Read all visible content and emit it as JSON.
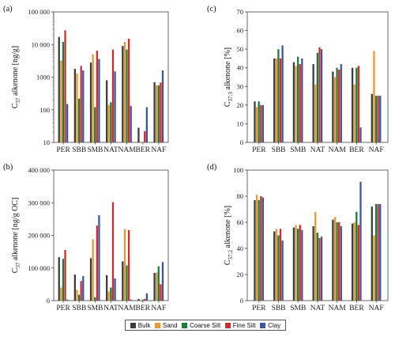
{
  "legend": {
    "items": [
      {
        "label": "Bulk",
        "color": "#3d3d3d"
      },
      {
        "label": "Sand",
        "color": "#e39a38"
      },
      {
        "label": "Coarse Silt",
        "color": "#1f7a3c"
      },
      {
        "label": "Fine Silt",
        "color": "#d62a2a"
      },
      {
        "label": "Clay",
        "color": "#3b56a6"
      }
    ]
  },
  "chart_data": [
    {
      "panel": "(a)",
      "type": "bar",
      "scale": "log",
      "ylabel": "C37 alkenone [ng/g]",
      "ylim": [
        10,
        100000
      ],
      "yticks": [
        "10",
        "100",
        "1000",
        "10 000",
        "100 000"
      ],
      "ytick_values": [
        10,
        100,
        1000,
        10000,
        100000
      ],
      "categories": [
        "PER",
        "SBB",
        "SMB",
        "NAT",
        "NAM",
        "BER",
        "NAF"
      ],
      "series": [
        {
          "name": "Bulk",
          "values": [
            17000,
            1800,
            2800,
            800,
            9000,
            28,
            700
          ]
        },
        {
          "name": "Sand",
          "values": [
            3200,
            1300,
            5000,
            140,
            12000,
            null,
            560
          ]
        },
        {
          "name": "Coarse Silt",
          "values": [
            12000,
            220,
            120,
            170,
            7000,
            10,
            560
          ]
        },
        {
          "name": "Fine Silt",
          "values": [
            27000,
            2200,
            6500,
            7000,
            15000,
            22,
            680
          ]
        },
        {
          "name": "Clay",
          "values": [
            150,
            1600,
            3600,
            1500,
            130,
            120,
            1600
          ]
        }
      ]
    },
    {
      "panel": "(b)",
      "type": "bar",
      "scale": "linear",
      "ylabel": "C37 alkenone [ng/g OC]",
      "ylim": [
        0,
        400000
      ],
      "yticks": [
        "0",
        "100 000",
        "200 000",
        "300 000",
        "400 000"
      ],
      "ytick_values": [
        0,
        100000,
        200000,
        300000,
        400000
      ],
      "categories": [
        "PER",
        "SBB",
        "SMB",
        "NAT",
        "NAM",
        "BER",
        "NAF"
      ],
      "series": [
        {
          "name": "Bulk",
          "values": [
            133000,
            80000,
            130000,
            78000,
            120000,
            5000,
            85000
          ]
        },
        {
          "name": "Sand",
          "values": [
            40000,
            33000,
            188000,
            28000,
            219000,
            null,
            86000
          ]
        },
        {
          "name": "Coarse Silt",
          "values": [
            128000,
            18000,
            10000,
            40000,
            108000,
            3000,
            105000
          ]
        },
        {
          "name": "Fine Silt",
          "values": [
            155000,
            60000,
            230000,
            302000,
            216000,
            5000,
            50000
          ]
        },
        {
          "name": "Clay",
          "values": [
            3000,
            75000,
            262000,
            68000,
            3000,
            22000,
            118000
          ]
        }
      ]
    },
    {
      "panel": "(c)",
      "type": "bar",
      "scale": "linear",
      "ylabel": "C37:3 alkenone [%]",
      "ylim": [
        0,
        70
      ],
      "yticks": [
        "0",
        "10",
        "20",
        "30",
        "40",
        "50",
        "60",
        "70"
      ],
      "ytick_values": [
        0,
        10,
        20,
        30,
        40,
        50,
        60,
        70
      ],
      "categories": [
        "PER",
        "SBB",
        "SMB",
        "NAT",
        "NAM",
        "BER",
        "NAF"
      ],
      "series": [
        {
          "name": "Bulk",
          "values": [
            22,
            45,
            43,
            42,
            38,
            40,
            26
          ]
        },
        {
          "name": "Sand",
          "values": [
            19,
            45,
            41,
            31,
            35,
            31,
            49
          ]
        },
        {
          "name": "Coarse Silt",
          "values": [
            22,
            50,
            46,
            48,
            40,
            40,
            25
          ]
        },
        {
          "name": "Fine Silt",
          "values": [
            20,
            45,
            42,
            51,
            39,
            41,
            25
          ]
        },
        {
          "name": "Clay",
          "values": [
            20,
            52,
            45,
            50,
            42,
            8,
            25
          ]
        }
      ]
    },
    {
      "panel": "(d)",
      "type": "bar",
      "scale": "linear",
      "ylabel": "C37:2 alkenone [%]",
      "ylim": [
        0,
        100
      ],
      "yticks": [
        "0",
        "20",
        "40",
        "60",
        "80",
        "100"
      ],
      "ytick_values": [
        0,
        20,
        40,
        60,
        80,
        100
      ],
      "categories": [
        "PER",
        "SBB",
        "SMB",
        "NAT",
        "NAM",
        "BER",
        "NAF"
      ],
      "series": [
        {
          "name": "Bulk",
          "values": [
            77,
            53,
            56,
            57,
            62,
            59,
            72
          ]
        },
        {
          "name": "Sand",
          "values": [
            81,
            55,
            58,
            68,
            64,
            60,
            50
          ]
        },
        {
          "name": "Coarse Silt",
          "values": [
            77,
            50,
            55,
            52,
            60,
            68,
            74
          ]
        },
        {
          "name": "Fine Silt",
          "values": [
            80,
            55,
            58,
            48,
            60,
            58,
            74
          ]
        },
        {
          "name": "Clay",
          "values": [
            79,
            46,
            54,
            49,
            57,
            91,
            74
          ]
        }
      ]
    }
  ]
}
